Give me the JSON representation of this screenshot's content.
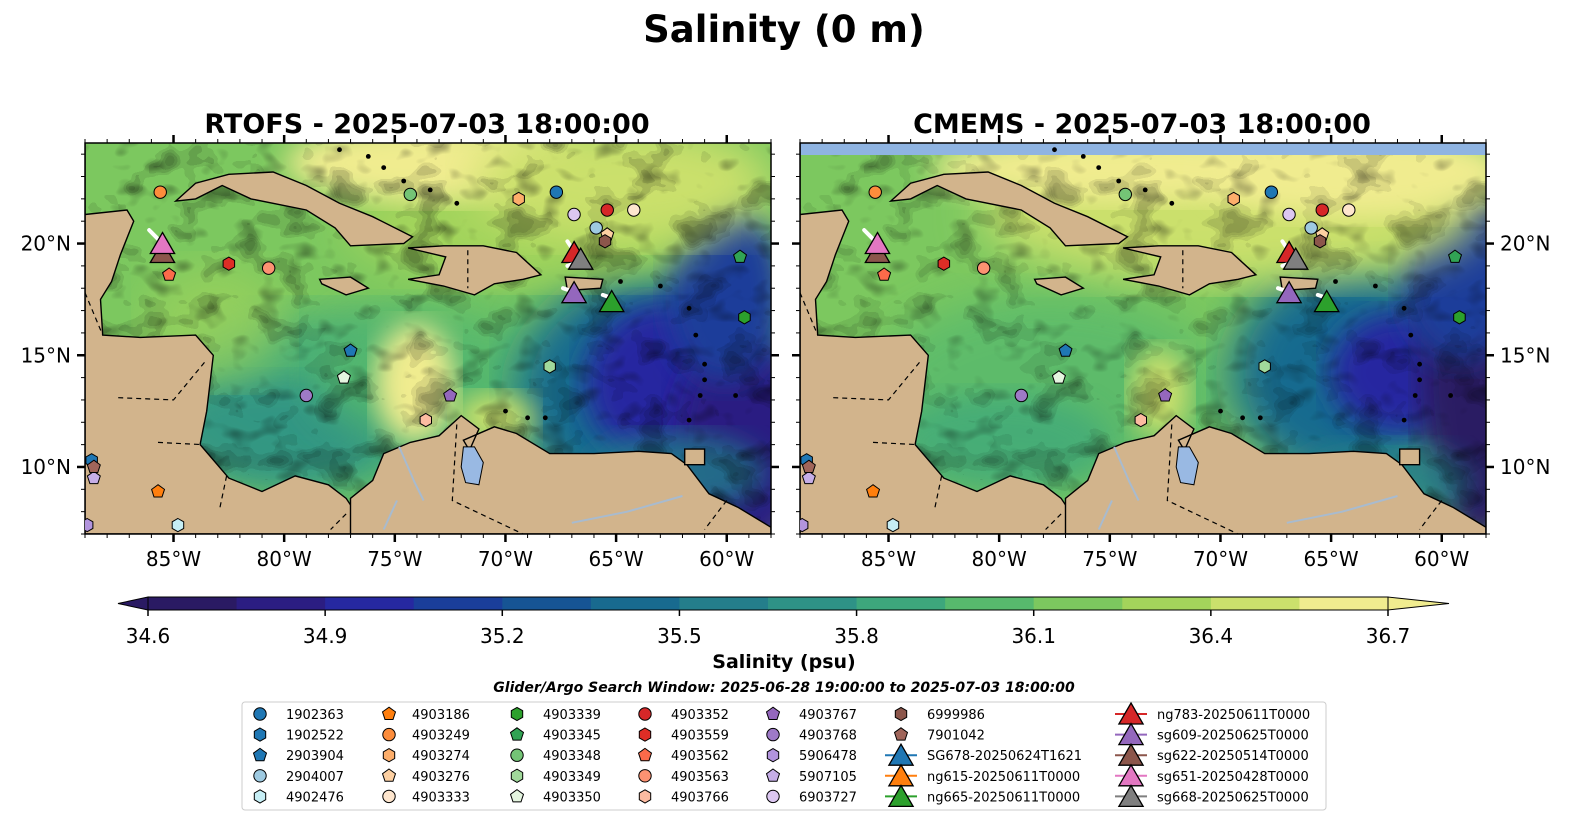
{
  "figure": {
    "title": "Salinity (0 m)",
    "window_text": "Glider/Argo Search Window: 2025-06-28 19:00:00 to 2025-07-03 18:00:00"
  },
  "colors": {
    "land": "#d2b48c",
    "lakes": "#99b9e3",
    "rivers": "#a8bbcf",
    "cmems_nodata": "#8fb4e2"
  },
  "chart_data": {
    "type": "heatmap",
    "variable": "Salinity",
    "depth": "0 m",
    "colormap": "haline",
    "colorbar": {
      "label": "Salinity (psu)",
      "min": 34.6,
      "max": 36.7,
      "ticks": [
        34.6,
        34.9,
        35.2,
        35.5,
        35.8,
        36.1,
        36.4,
        36.7
      ],
      "tick_labels": [
        "34.6",
        "34.9",
        "35.2",
        "35.5",
        "35.8",
        "36.1",
        "36.4",
        "36.7"
      ],
      "extend": "both",
      "colors": [
        "#2a1a63",
        "#2b1d82",
        "#2628a0",
        "#1a3e9a",
        "#165494",
        "#186a8f",
        "#247e8b",
        "#2e9286",
        "#3da77c",
        "#57b96d",
        "#7cc85f",
        "#a3d45b",
        "#cbe06c",
        "#f0ec8f"
      ]
    },
    "x_range": [
      -89,
      -58
    ],
    "y_range": [
      7,
      24.5
    ],
    "x_ticks": [
      -85,
      -80,
      -75,
      -70,
      -65,
      -60
    ],
    "x_tick_labels": [
      "85°W",
      "80°W",
      "75°W",
      "70°W",
      "65°W",
      "60°W"
    ],
    "y_ticks": [
      10,
      15,
      20
    ],
    "y_tick_labels": [
      "10°N",
      "15°N",
      "20°N"
    ],
    "panels": [
      {
        "title": "RTOFS - 2025-07-03 18:00:00",
        "model": "RTOFS"
      },
      {
        "title": "CMEMS - 2025-07-03 18:00:00",
        "model": "CMEMS"
      }
    ],
    "argo_floats": [
      {
        "id": "1902363",
        "lon": -67.7,
        "lat": 22.3,
        "color": "#1f77b4",
        "marker": "circle"
      },
      {
        "id": "1902522",
        "lon": -88.7,
        "lat": 10.3,
        "color": "#1f77b4",
        "marker": "hexagon"
      },
      {
        "id": "2903904",
        "lon": -77.0,
        "lat": 15.2,
        "color": "#1f77b4",
        "marker": "pentagon"
      },
      {
        "id": "2904007",
        "lon": -65.9,
        "lat": 20.7,
        "color": "#9ecae1",
        "marker": "circle"
      },
      {
        "id": "4902476",
        "lon": -84.8,
        "lat": 7.4,
        "color": "#c6eef5",
        "marker": "hexagon"
      },
      {
        "id": "4903186",
        "lon": -85.7,
        "lat": 8.9,
        "color": "#ff7f0e",
        "marker": "pentagon"
      },
      {
        "id": "4903249",
        "lon": -85.6,
        "lat": 22.3,
        "color": "#fd8d3c",
        "marker": "circle"
      },
      {
        "id": "4903274",
        "lon": -69.4,
        "lat": 22.0,
        "color": "#fdae6b",
        "marker": "hexagon"
      },
      {
        "id": "4903276",
        "lon": -65.4,
        "lat": 20.4,
        "color": "#fdd0a2",
        "marker": "pentagon"
      },
      {
        "id": "4903333",
        "lon": -64.2,
        "lat": 21.5,
        "color": "#fee6ce",
        "marker": "circle"
      },
      {
        "id": "4903339",
        "lon": -59.2,
        "lat": 16.7,
        "color": "#2ca02c",
        "marker": "hexagon"
      },
      {
        "id": "4903345",
        "lon": -59.4,
        "lat": 19.4,
        "color": "#31a354",
        "marker": "pentagon"
      },
      {
        "id": "4903348",
        "lon": -74.3,
        "lat": 22.2,
        "color": "#74c476",
        "marker": "circle"
      },
      {
        "id": "4903349",
        "lon": -68.0,
        "lat": 14.5,
        "color": "#a1d99b",
        "marker": "hexagon"
      },
      {
        "id": "4903350",
        "lon": -77.3,
        "lat": 14.0,
        "color": "#e5f5e0",
        "marker": "pentagon"
      },
      {
        "id": "4903352",
        "lon": -65.4,
        "lat": 21.5,
        "color": "#d62728",
        "marker": "circle"
      },
      {
        "id": "4903559",
        "lon": -82.5,
        "lat": 19.1,
        "color": "#de2d26",
        "marker": "hexagon"
      },
      {
        "id": "4903562",
        "lon": -85.2,
        "lat": 18.6,
        "color": "#fb6a4a",
        "marker": "pentagon"
      },
      {
        "id": "4903563",
        "lon": -80.7,
        "lat": 18.9,
        "color": "#fc9272",
        "marker": "circle"
      },
      {
        "id": "4903766",
        "lon": -73.6,
        "lat": 12.1,
        "color": "#fcbba1",
        "marker": "hexagon"
      },
      {
        "id": "4903767",
        "lon": -72.5,
        "lat": 13.2,
        "color": "#9467bd",
        "marker": "pentagon"
      },
      {
        "id": "4903768",
        "lon": -79.0,
        "lat": 13.2,
        "color": "#9e7ac7",
        "marker": "circle"
      },
      {
        "id": "5906478",
        "lon": -88.9,
        "lat": 7.4,
        "color": "#b294dd",
        "marker": "hexagon"
      },
      {
        "id": "5907105",
        "lon": -88.6,
        "lat": 9.5,
        "color": "#c6aee7",
        "marker": "pentagon"
      },
      {
        "id": "6903727",
        "lon": -66.9,
        "lat": 21.3,
        "color": "#dcc7f1",
        "marker": "circle"
      },
      {
        "id": "6999986",
        "lon": -65.5,
        "lat": 20.1,
        "color": "#8c564b",
        "marker": "hexagon"
      },
      {
        "id": "7901042",
        "lon": -88.6,
        "lat": 10.0,
        "color": "#a0655a",
        "marker": "pentagon"
      }
    ],
    "gliders": [
      {
        "id": "SG678-20250624T1621",
        "color": "#1f77b4",
        "track": [],
        "lon": null,
        "lat": null
      },
      {
        "id": "ng615-20250611T0000",
        "color": "#ff7f0e",
        "track": [],
        "lon": null,
        "lat": null
      },
      {
        "id": "ng665-20250611T0000",
        "color": "#2ca02c",
        "track": [
          [
            -65.6,
            17.7
          ],
          [
            -65.3,
            17.6
          ],
          [
            -65.2,
            17.5
          ]
        ],
        "lon": -65.2,
        "lat": 17.4
      },
      {
        "id": "ng783-20250611T0000",
        "color": "#d62728",
        "track": [
          [
            -67.2,
            20.1
          ],
          [
            -67.0,
            19.8
          ],
          [
            -66.9,
            19.6
          ]
        ],
        "lon": -66.9,
        "lat": 19.6
      },
      {
        "id": "sg609-20250625T0000",
        "color": "#9467bd",
        "track": [
          [
            -67.4,
            18.0
          ],
          [
            -67.1,
            17.9
          ],
          [
            -66.9,
            17.8
          ]
        ],
        "lon": -66.9,
        "lat": 17.8
      },
      {
        "id": "sg622-20250514T0000",
        "color": "#8c564b",
        "track": [
          [
            -85.6,
            19.9
          ],
          [
            -85.5,
            19.7
          ]
        ],
        "lon": -85.5,
        "lat": 19.6
      },
      {
        "id": "sg651-20250428T0000",
        "color": "#e377c2",
        "track": [
          [
            -86.1,
            20.6
          ],
          [
            -85.8,
            20.3
          ],
          [
            -85.5,
            20.0
          ]
        ],
        "lon": -85.5,
        "lat": 20.0
      },
      {
        "id": "sg668-20250625T0000",
        "color": "#7f7f7f",
        "track": [
          [
            -67.2,
            19.0
          ],
          [
            -66.9,
            19.1
          ],
          [
            -66.6,
            19.3
          ]
        ],
        "lon": -66.6,
        "lat": 19.3
      }
    ]
  }
}
